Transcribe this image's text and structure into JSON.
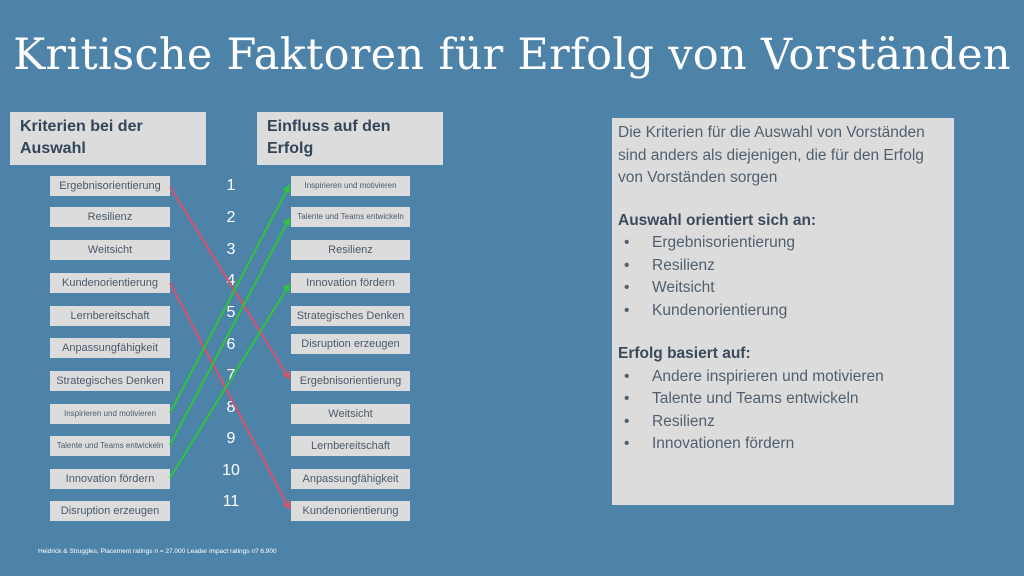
{
  "title": "Kritische Faktoren für Erfolg von Vorständen",
  "left_header": "Kriterien bei der Auswahl",
  "right_header": "Einfluss auf den Erfolg",
  "left_items": [
    "Ergebnisorientierung",
    "Resilienz",
    "Weitsicht",
    "Kundenorientierung",
    "Lernbereitschaft",
    "Anpassungfähigkeit",
    "Strategisches Denken",
    "Inspirieren und motivieren",
    "Talente und Teams entwickeln",
    "Innovation fördern",
    "Disruption erzeugen"
  ],
  "right_items": [
    "Inspirieren und motivieren",
    "Talente und Teams entwickeln",
    "Resilienz",
    "Innovation fördern",
    "Strategisches Denken",
    "Disruption erzeugen",
    "Ergebnisorientierung",
    "Weitsicht",
    "Lernbereitschaft",
    "Anpassungfähigkeit",
    "Kundenorientierung"
  ],
  "numbers": [
    "1",
    "2",
    "3",
    "4",
    "5",
    "6",
    "7",
    "8",
    "9",
    "10",
    "11"
  ],
  "panel": {
    "intro": "Die Kriterien für die Auswahl von Vorständen sind anders als diejenigen, die für den Erfolg von Vorständen sorgen",
    "heading1": "Auswahl orientiert sich an:",
    "list1": [
      "Ergebnisorientierung",
      "Resilienz",
      "Weitsicht",
      "Kundenorientierung"
    ],
    "heading2": "Erfolg basiert auf:",
    "list2": [
      "Andere inspirieren und motivieren",
      "Talente und Teams entwickeln",
      "Resilienz",
      "Innovationen fördern"
    ],
    "bullet": "•"
  },
  "footnote": "Heidrick & Struggles, Placement ratings n = 27.000 Leader impact ratings n? 6.900",
  "colors": {
    "background": "#4e83a9",
    "box": "#dcdcdc",
    "red_arrow": "#d9516c",
    "green_arrow": "#2ec43a"
  },
  "arrows": [
    {
      "from": "Ergebnisorientierung",
      "to": "Ergebnisorientierung",
      "color": "red"
    },
    {
      "from": "Kundenorientierung",
      "to": "Kundenorientierung",
      "color": "red"
    },
    {
      "from": "Inspirieren und motivieren",
      "to": "Inspirieren und motivieren",
      "color": "green"
    },
    {
      "from": "Talente und Teams entwickeln",
      "to": "Talente und Teams entwickeln",
      "color": "green"
    },
    {
      "from": "Innovation fördern",
      "to": "Innovation fördern",
      "color": "green"
    }
  ]
}
